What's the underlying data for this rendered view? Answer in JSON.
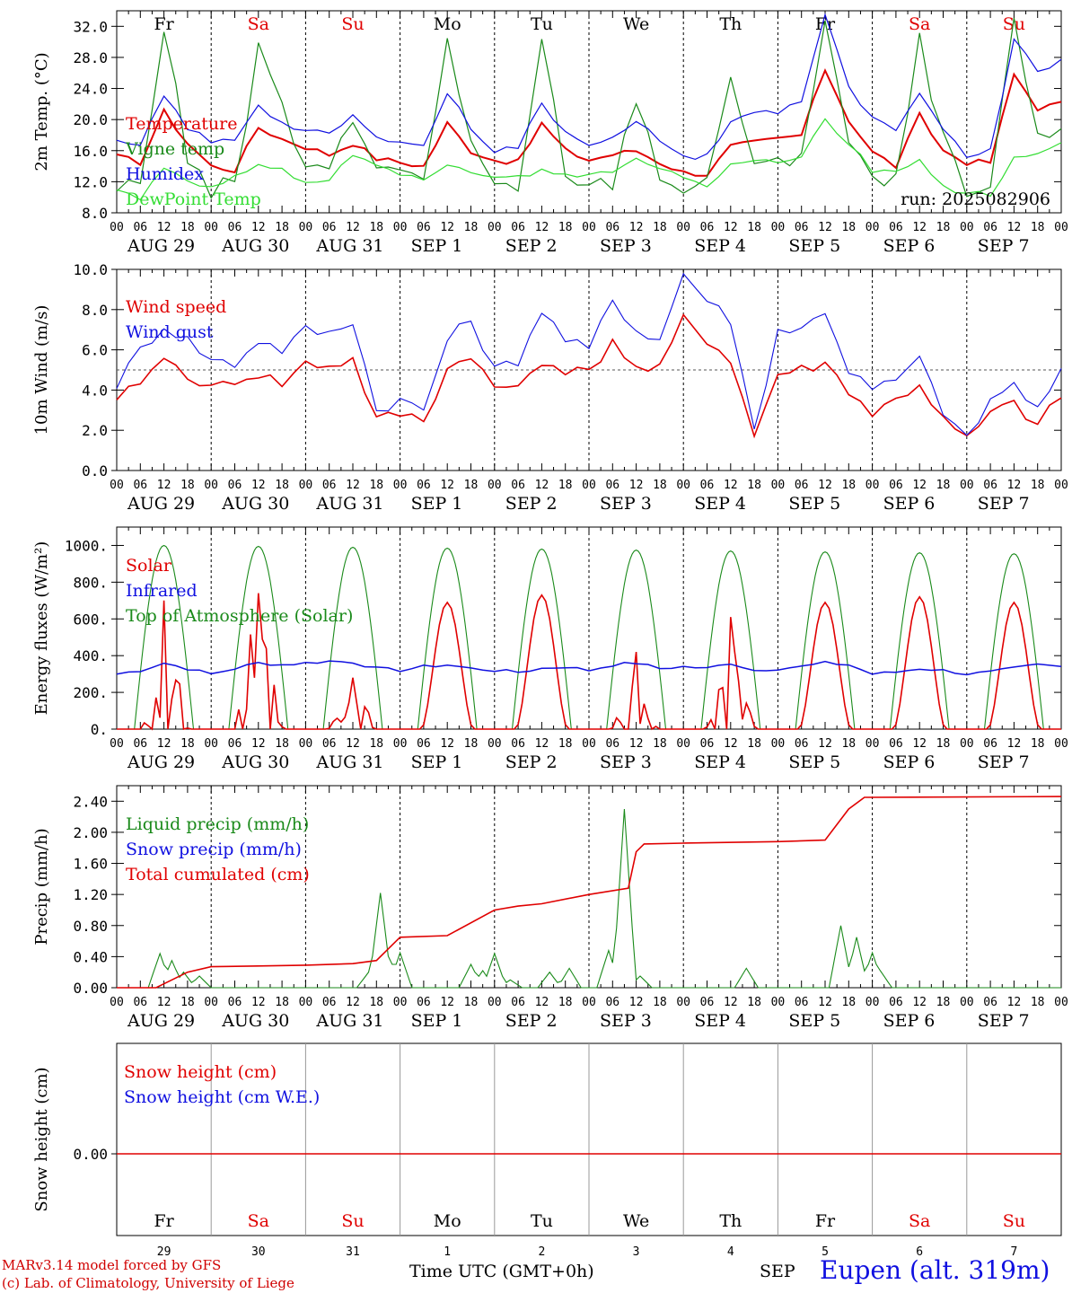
{
  "days_of_week": [
    {
      "label": "Fr",
      "color": "#000000"
    },
    {
      "label": "Sa",
      "color": "#e00000"
    },
    {
      "label": "Su",
      "color": "#e00000"
    },
    {
      "label": "Mo",
      "color": "#000000"
    },
    {
      "label": "Tu",
      "color": "#000000"
    },
    {
      "label": "We",
      "color": "#000000"
    },
    {
      "label": "Th",
      "color": "#000000"
    },
    {
      "label": "Fr",
      "color": "#000000"
    },
    {
      "label": "Sa",
      "color": "#e00000"
    },
    {
      "label": "Su",
      "color": "#e00000"
    }
  ],
  "date_labels": [
    "AUG 29",
    "AUG 30",
    "AUG 31",
    "SEP  1",
    "SEP  2",
    "SEP  3",
    "SEP  4",
    "SEP  5",
    "SEP  6",
    "SEP  7"
  ],
  "hour_ticks": [
    "00",
    "06",
    "12",
    "18"
  ],
  "hour_end": "00",
  "day_numbers": [
    "29",
    "30",
    "31",
    "1",
    "2",
    "3",
    "4",
    "5",
    "6",
    "7"
  ],
  "month_label": "SEP",
  "xaxis_title": "Time UTC (GMT+0h)",
  "footer": {
    "model": "MARv3.14 model forced by GFS",
    "credit": "(c) Lab. of Climatology, University of Liege",
    "location": "Eupen (alt. 319m)"
  },
  "colors": {
    "red": "#e00000",
    "green": "#1a8a1a",
    "blue": "#1010e0",
    "lightgreen": "#33dd33"
  },
  "chart_data": [
    {
      "type": "line",
      "ylabel": "2m Temp. (°C)",
      "ylim": [
        8,
        34
      ],
      "yticks": [
        "8.0",
        "12.0",
        "16.0",
        "20.0",
        "24.0",
        "28.0",
        "32.0"
      ],
      "annotation": "run: 2025082906",
      "x_hours_from_start": [
        0,
        6,
        12,
        18,
        24,
        30,
        36,
        42,
        48,
        54,
        60,
        66,
        72,
        78,
        84,
        90,
        96,
        102,
        108,
        114,
        120,
        126,
        132,
        138,
        144,
        150,
        156,
        162,
        168,
        174,
        180,
        186,
        192,
        198,
        204,
        210,
        216,
        222,
        228,
        234,
        240
      ],
      "series": [
        {
          "name": "Temperature",
          "color": "#e00000",
          "values": [
            15.2,
            14.5,
            21.0,
            17.0,
            14.0,
            13.5,
            19.0,
            17.5,
            16.5,
            15.5,
            17.0,
            15.0,
            14.5,
            14.0,
            19.5,
            16.0,
            14.8,
            14.5,
            19.5,
            16.0,
            14.8,
            15.5,
            16.0,
            14.5,
            13.2,
            13.0,
            16.5,
            17.0,
            17.5,
            18.0,
            26.5,
            20.0,
            15.8,
            14.0,
            20.5,
            16.0,
            14.5,
            14.5,
            25.8,
            21.5,
            22.0
          ]
        },
        {
          "name": "Vigne temp",
          "color": "#1a8a1a",
          "values": [
            11.0,
            12.0,
            32.0,
            15.0,
            11.0,
            11.5,
            29.0,
            22.0,
            13.0,
            13.5,
            20.0,
            15.0,
            13.0,
            12.0,
            30.5,
            17.0,
            11.0,
            10.5,
            30.0,
            13.5,
            11.0,
            12.0,
            23.0,
            13.0,
            11.0,
            11.5,
            26.0,
            14.0,
            14.0,
            16.0,
            33.0,
            17.0,
            12.0,
            12.0,
            30.0,
            17.5,
            10.0,
            11.0,
            32.0,
            18.0,
            18.0
          ]
        },
        {
          "name": "Humidex",
          "color": "#1010e0",
          "values": [
            17.0,
            16.5,
            23.0,
            19.0,
            17.0,
            17.5,
            22.0,
            19.5,
            18.5,
            18.0,
            20.5,
            17.5,
            17.5,
            16.5,
            23.5,
            19.0,
            16.0,
            16.5,
            22.0,
            18.5,
            17.0,
            17.5,
            19.5,
            17.5,
            15.0,
            15.5,
            19.5,
            21.0,
            21.0,
            22.5,
            33.5,
            24.0,
            20.0,
            18.5,
            23.0,
            19.0,
            15.5,
            16.0,
            30.5,
            26.5,
            27.5
          ]
        },
        {
          "name": "DewPoint Temp",
          "color": "#33dd33",
          "values": [
            11.0,
            10.0,
            13.5,
            12.5,
            11.0,
            12.5,
            14.0,
            13.5,
            12.0,
            12.5,
            15.0,
            14.0,
            13.0,
            12.0,
            14.5,
            13.0,
            12.5,
            12.5,
            13.5,
            12.8,
            13.0,
            13.2,
            15.0,
            14.0,
            12.5,
            11.5,
            14.5,
            15.0,
            14.5,
            15.5,
            20.0,
            17.0,
            13.5,
            13.5,
            14.5,
            11.5,
            10.5,
            10.5,
            15.0,
            15.5,
            16.8
          ]
        }
      ]
    },
    {
      "type": "line",
      "ylabel": "10m Wind (m/s)",
      "ylim": [
        0,
        10
      ],
      "yticks": [
        "0.0",
        "2.0",
        "4.0",
        "6.0",
        "8.0",
        "10.0"
      ],
      "reference_line": 5,
      "x_hours_from_start": [
        0,
        6,
        12,
        18,
        24,
        30,
        36,
        42,
        48,
        54,
        60,
        66,
        72,
        78,
        84,
        90,
        96,
        102,
        108,
        114,
        120,
        126,
        132,
        138,
        144,
        150,
        156,
        162,
        168,
        174,
        180,
        186,
        192,
        198,
        204,
        210,
        216,
        222,
        228,
        234,
        240
      ],
      "series": [
        {
          "name": "Wind speed",
          "color": "#e00000",
          "values": [
            3.3,
            4.5,
            5.5,
            4.8,
            4.0,
            4.5,
            4.8,
            4.3,
            5.3,
            5.2,
            5.5,
            2.5,
            2.8,
            2.5,
            5.0,
            5.8,
            4.0,
            4.2,
            5.5,
            5.0,
            4.8,
            6.5,
            5.0,
            5.0,
            7.5,
            6.5,
            5.5,
            1.7,
            4.8,
            5.0,
            5.3,
            4.0,
            2.8,
            3.5,
            4.3,
            2.5,
            1.5,
            2.8,
            3.3,
            2.2,
            3.7
          ]
        },
        {
          "name": "Wind gust",
          "color": "#1010e0",
          "values": [
            4.3,
            6.0,
            7.2,
            6.5,
            5.5,
            5.3,
            6.5,
            6.0,
            7.0,
            6.8,
            7.5,
            3.0,
            3.5,
            3.0,
            6.5,
            7.5,
            5.0,
            5.5,
            8.0,
            6.5,
            6.0,
            8.5,
            7.0,
            6.5,
            9.8,
            8.5,
            7.5,
            2.0,
            7.0,
            7.0,
            8.0,
            5.0,
            4.0,
            4.5,
            5.5,
            3.0,
            1.5,
            3.5,
            4.3,
            3.0,
            4.8
          ]
        }
      ]
    },
    {
      "type": "line",
      "ylabel": "Energy fluxes (W/m²)",
      "ylim": [
        0,
        1100
      ],
      "yticks": [
        "0.",
        "200.",
        "400.",
        "600.",
        "800.",
        "1000."
      ],
      "series": [
        {
          "name": "Solar",
          "color": "#e00000",
          "daily_peaks": [
            700,
            740,
            280,
            690,
            730,
            420,
            610,
            690,
            720,
            690
          ]
        },
        {
          "name": "Infrared",
          "color": "#1010e0",
          "values": [
            300,
            320,
            360,
            330,
            300,
            330,
            360,
            350,
            360,
            370,
            365,
            330,
            320,
            340,
            350,
            330,
            320,
            310,
            330,
            340,
            320,
            350,
            360,
            330,
            340,
            330,
            360,
            320,
            330,
            340,
            360,
            350,
            300,
            310,
            330,
            320,
            300,
            310,
            330,
            350,
            340
          ]
        },
        {
          "name": "Top of Atmosphere (Solar)",
          "color": "#1a8a1a",
          "daily_peaks": [
            1000,
            995,
            990,
            985,
            980,
            975,
            970,
            965,
            960,
            955
          ]
        }
      ]
    },
    {
      "type": "line",
      "ylabel": "Precip (mm/h)",
      "ylim": [
        0,
        2.6
      ],
      "yticks": [
        "0.00",
        "0.40",
        "0.80",
        "1.20",
        "1.60",
        "2.00",
        "2.40"
      ],
      "series": [
        {
          "name": "Liquid precip (mm/h)",
          "color": "#1a8a1a",
          "spikes_hour_value": [
            [
              11,
              0.44
            ],
            [
              14,
              0.35
            ],
            [
              17,
              0.2
            ],
            [
              21,
              0.15
            ],
            [
              64,
              0.2
            ],
            [
              67,
              1.22
            ],
            [
              70,
              0.3
            ],
            [
              72,
              0.45
            ],
            [
              90,
              0.3
            ],
            [
              93,
              0.22
            ],
            [
              96,
              0.44
            ],
            [
              100,
              0.1
            ],
            [
              110,
              0.2
            ],
            [
              115,
              0.25
            ],
            [
              125,
              0.48
            ],
            [
              129,
              2.3
            ],
            [
              133,
              0.15
            ],
            [
              160,
              0.25
            ],
            [
              184,
              0.8
            ],
            [
              188,
              0.65
            ],
            [
              192,
              0.45
            ],
            [
              194,
              0.22
            ]
          ]
        },
        {
          "name": "Snow precip (mm/h)",
          "color": "#1010e0",
          "values": []
        },
        {
          "name": "Total cumulated (cm)",
          "color": "#e00000",
          "hours": [
            0,
            10,
            14,
            18,
            24,
            36,
            48,
            60,
            66,
            70,
            72,
            84,
            96,
            102,
            108,
            120,
            130,
            132,
            134,
            144,
            168,
            180,
            186,
            190,
            240
          ],
          "values": [
            0,
            0,
            0.1,
            0.2,
            0.27,
            0.28,
            0.29,
            0.31,
            0.35,
            0.55,
            0.65,
            0.67,
            1.0,
            1.05,
            1.08,
            1.2,
            1.28,
            1.75,
            1.85,
            1.86,
            1.88,
            1.9,
            2.3,
            2.45,
            2.46
          ]
        }
      ]
    },
    {
      "type": "line",
      "ylabel": "Snow height (cm)",
      "yticks": [
        "0.00"
      ],
      "series": [
        {
          "name": "Snow height (cm)",
          "color": "#e00000",
          "values": [
            0,
            0
          ]
        },
        {
          "name": "Snow height (cm W.E.)",
          "color": "#1010e0",
          "values": []
        }
      ]
    }
  ]
}
